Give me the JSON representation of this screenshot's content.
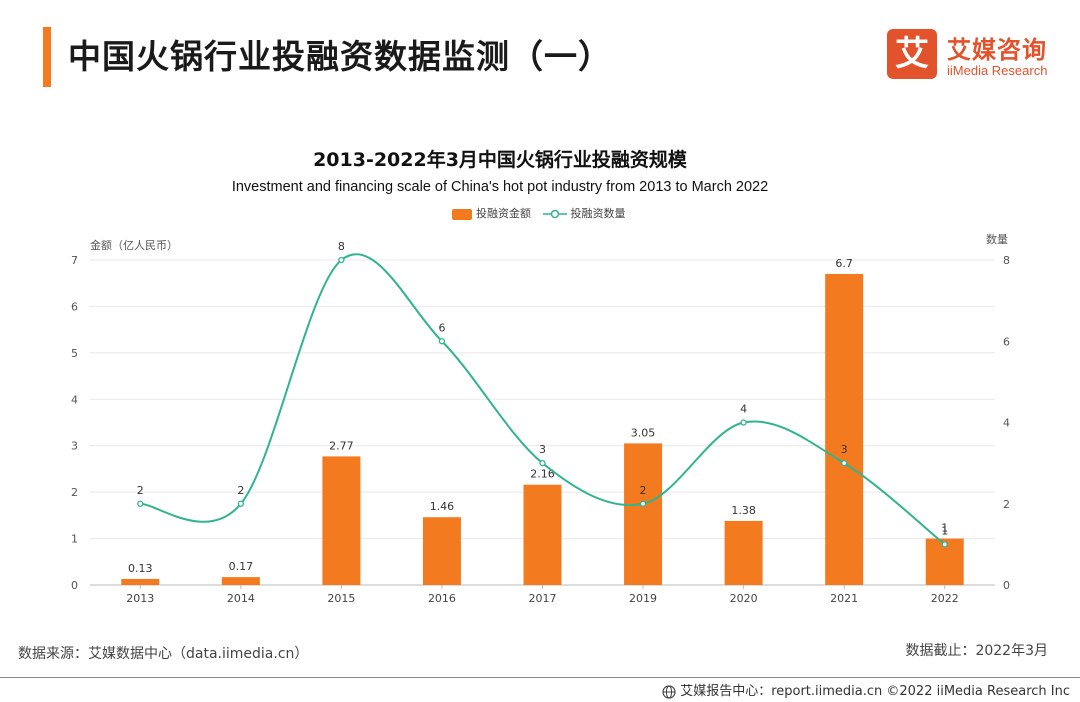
{
  "header": {
    "title": "中国火锅行业投融资数据监测（一）",
    "accent_color": "#f47a20"
  },
  "logo": {
    "mark": "艾",
    "cn": "艾媒咨询",
    "en": "iiMedia Research",
    "color": "#e2522b"
  },
  "chart_data": {
    "type": "bar",
    "title": "2013-2022年3月中国火锅行业投融资规模",
    "subtitle": "Investment and financing scale of China's hot pot industry from 2013 to March 2022",
    "categories": [
      "2013",
      "2014",
      "2015",
      "2016",
      "2017",
      "2019",
      "2020",
      "2021",
      "2022"
    ],
    "ylabel": "金额（亿人民币）",
    "y2label": "数量",
    "ylim": [
      0,
      7
    ],
    "yticks": [
      0,
      1,
      2,
      3,
      4,
      5,
      6,
      7
    ],
    "y2lim": [
      0,
      8
    ],
    "y2ticks": [
      0,
      2,
      4,
      6,
      8
    ],
    "grid": true,
    "legend_position": "top-center",
    "series": [
      {
        "name": "投融资金额",
        "type": "bar",
        "axis": "left",
        "color": "#f47a20",
        "values": [
          0.13,
          0.17,
          2.77,
          1.46,
          2.16,
          3.05,
          1.38,
          6.7,
          1
        ],
        "labels": [
          "0.13",
          "0.17",
          "2.77",
          "1.46",
          "2.16",
          "3.05",
          "1.38",
          "6.7",
          "1"
        ]
      },
      {
        "name": "投融资数量",
        "type": "line",
        "axis": "right",
        "smooth": true,
        "color": "#2fb48e",
        "values": [
          2,
          2,
          8,
          6,
          3,
          2,
          4,
          3,
          1
        ],
        "labels": [
          "2",
          "2",
          "8",
          "6",
          "3",
          "2",
          "4",
          "3",
          "1"
        ]
      }
    ]
  },
  "source": "数据来源：艾媒数据中心（data.iimedia.cn）",
  "cutoff": "数据截止：2022年3月",
  "footer": "艾媒报告中心：report.iimedia.cn  ©2022  iiMedia Research  Inc"
}
